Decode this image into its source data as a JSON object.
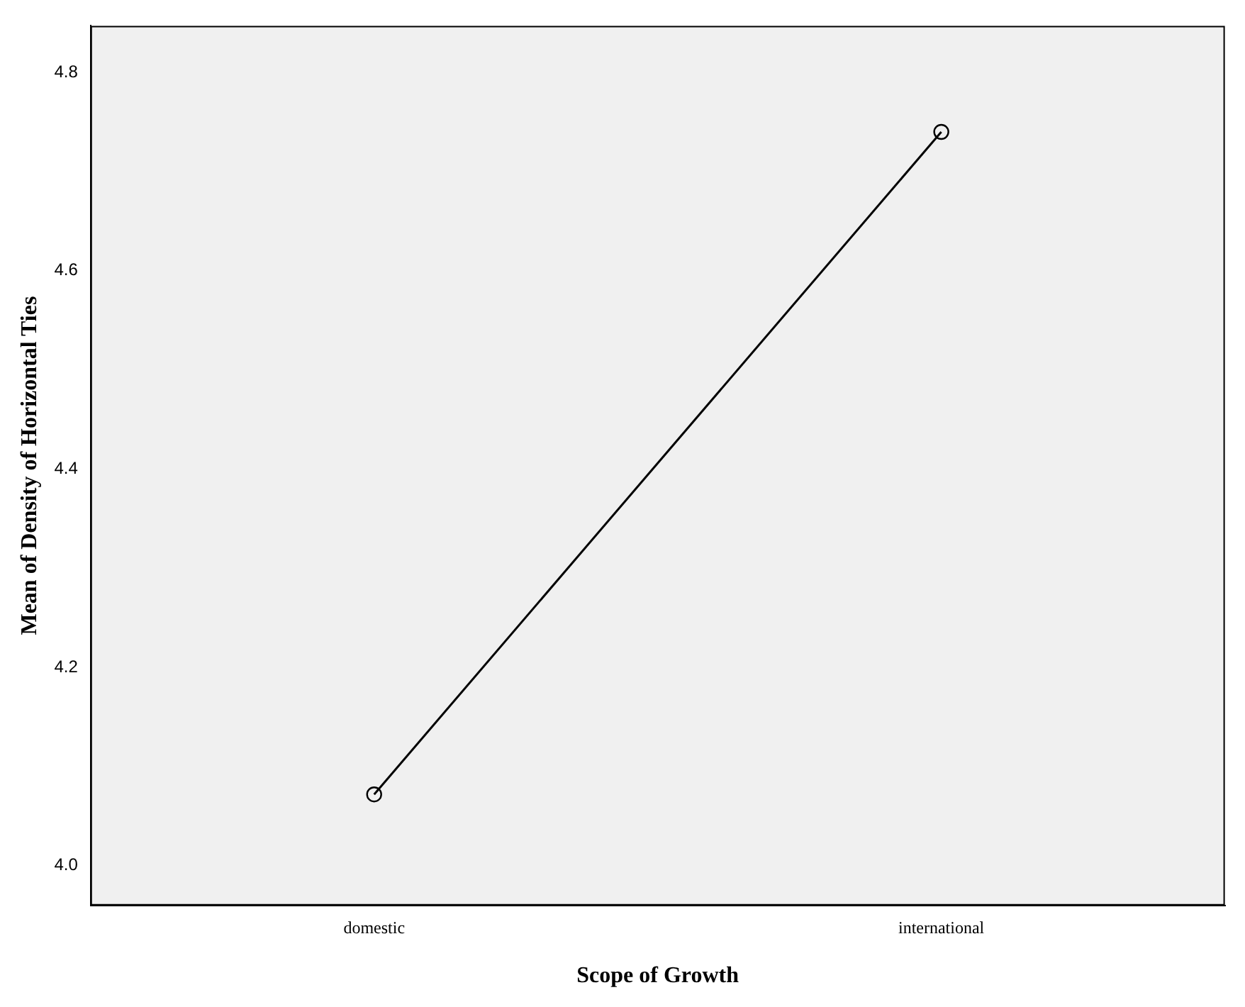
{
  "chart_data": {
    "type": "line",
    "xlabel": "Scope of Growth",
    "ylabel": "Mean of Density of Horizontal Ties",
    "categories": [
      "domestic",
      "international"
    ],
    "series": [
      {
        "color": "#000000",
        "values": [
          4.072,
          4.74
        ]
      }
    ],
    "ylim": [
      3.96,
      4.847
    ],
    "yticks": [
      {
        "value": 4.0,
        "label": "4.0"
      },
      {
        "value": 4.2,
        "label": "4.2"
      },
      {
        "value": 4.4,
        "label": "4.4"
      },
      {
        "value": 4.6,
        "label": "4.6"
      },
      {
        "value": 4.8,
        "label": "4.8"
      }
    ],
    "grid": false,
    "legend": false,
    "marker": "circle",
    "line_style": "solid"
  }
}
